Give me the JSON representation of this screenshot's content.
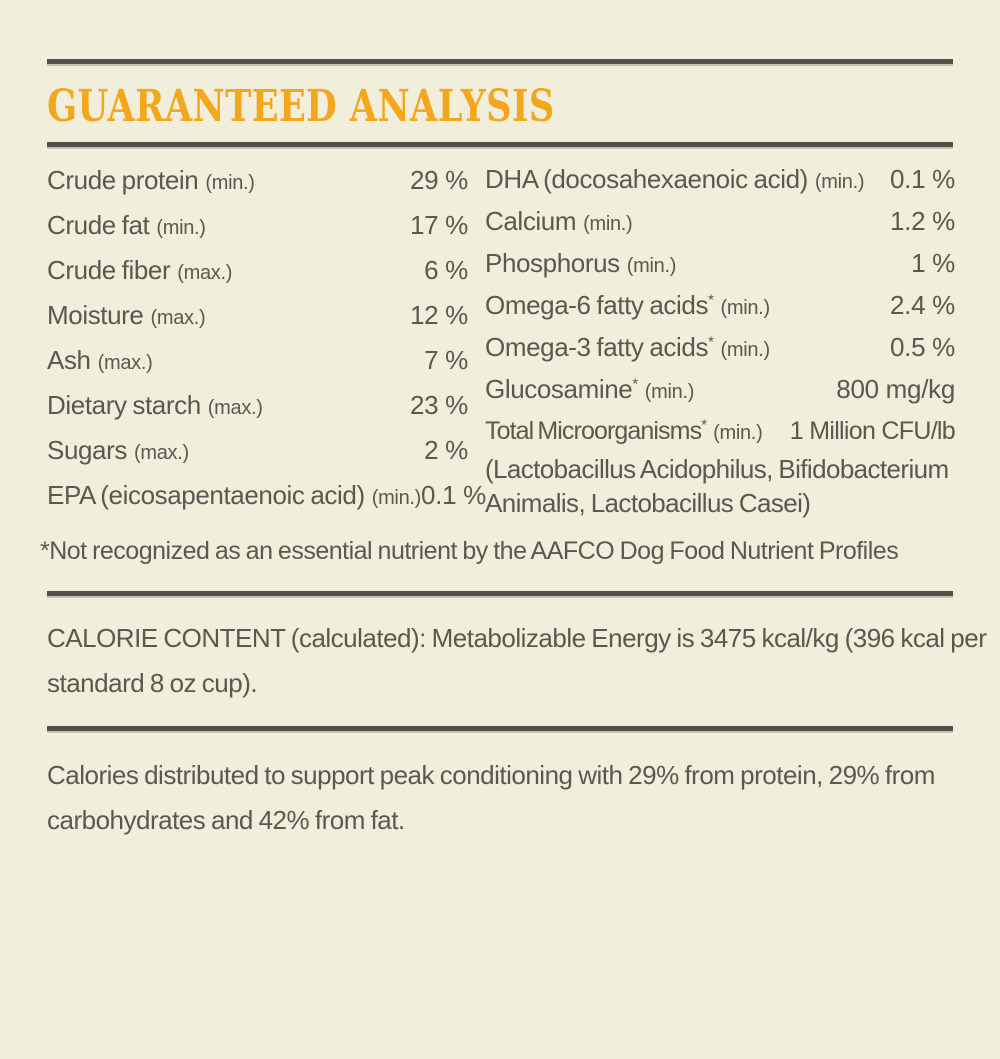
{
  "colors": {
    "background": "#f1eedc",
    "text": "#5c5850",
    "rule": "#53504a",
    "accent_orange": "#f2a71c"
  },
  "title": "GUARANTEED ANALYSIS",
  "analysis": {
    "left_rows": [
      {
        "label": "Crude protein",
        "asterisk": false,
        "qualifier": "(min.)",
        "value": "29 %"
      },
      {
        "label": "Crude fat",
        "asterisk": false,
        "qualifier": "(min.)",
        "value": "17 %"
      },
      {
        "label": "Crude fiber",
        "asterisk": false,
        "qualifier": "(max.)",
        "value": "6 %"
      },
      {
        "label": "Moisture",
        "asterisk": false,
        "qualifier": "(max.)",
        "value": "12 %"
      },
      {
        "label": "Ash",
        "asterisk": false,
        "qualifier": "(max.)",
        "value": "7 %"
      },
      {
        "label": "Dietary starch",
        "asterisk": false,
        "qualifier": "(max.)",
        "value": "23 %"
      },
      {
        "label": "Sugars",
        "asterisk": false,
        "qualifier": "(max.)",
        "value": "2 %"
      },
      {
        "label": "EPA (eicosapentaenoic acid)",
        "asterisk": false,
        "qualifier": "(min.)",
        "value": "0.1 %"
      }
    ],
    "right_rows": [
      {
        "label": "DHA (docosahexaenoic acid)",
        "asterisk": false,
        "qualifier": "(min.)",
        "value": "0.1 %"
      },
      {
        "label": "Calcium",
        "asterisk": false,
        "qualifier": "(min.)",
        "value": "1.2 %"
      },
      {
        "label": "Phosphorus",
        "asterisk": false,
        "qualifier": "(min.)",
        "value": "1 %"
      },
      {
        "label": "Omega-6 fatty acids",
        "asterisk": true,
        "qualifier": "(min.)",
        "value": "2.4 %"
      },
      {
        "label": "Omega-3 fatty acids",
        "asterisk": true,
        "qualifier": "(min.)",
        "value": "0.5 %"
      },
      {
        "label": "Glucosamine",
        "asterisk": true,
        "qualifier": "(min.)",
        "value": "800 mg/kg"
      },
      {
        "label": "Total Microorganisms",
        "asterisk": true,
        "qualifier": "(min.)",
        "value": "1 Million CFU/lb",
        "detail_lines": [
          "(Lactobacillus Acidophilus, Bifidobacterium",
          "Animalis, Lactobacillus Casei)"
        ]
      }
    ]
  },
  "footnote": "*Not recognized as an essential nutrient by the AAFCO Dog Food Nutrient Profiles",
  "calorie_content_lines": [
    "CALORIE CONTENT (calculated): Metabolizable Energy is 3475 kcal/kg (396 kcal per",
    "standard 8 oz cup)."
  ],
  "calorie_distribution_lines": [
    "Calories distributed to support peak conditioning with 29% from protein, 29% from",
    "carbohydrates and 42% from fat."
  ]
}
